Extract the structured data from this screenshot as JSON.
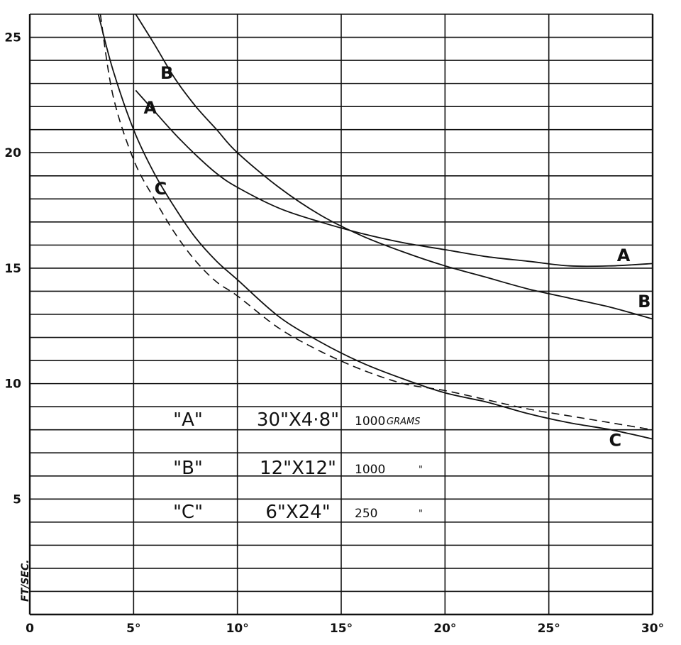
{
  "chart_data": {
    "type": "line",
    "title": "",
    "xlabel": "",
    "ylabel": "FT/SEC.",
    "xlim": [
      0,
      30
    ],
    "ylim": [
      0,
      26
    ],
    "grid": true,
    "x_ticks": [
      "0",
      "5°",
      "10°",
      "15°",
      "20°",
      "25°",
      "30°"
    ],
    "y_ticks": [
      "5",
      "10",
      "15",
      "20",
      "25"
    ],
    "series": [
      {
        "name": "A",
        "x": [
          5.1,
          6,
          7,
          8,
          9,
          10,
          12,
          14,
          16,
          18,
          20,
          22,
          24,
          26,
          28,
          30
        ],
        "y": [
          22.7,
          21.8,
          20.8,
          19.9,
          19.1,
          18.5,
          17.6,
          17.0,
          16.5,
          16.1,
          15.8,
          15.5,
          15.3,
          15.1,
          15.1,
          15.2
        ]
      },
      {
        "name": "B",
        "x": [
          5.1,
          6,
          7,
          8,
          9,
          10,
          12,
          14,
          16,
          18,
          20,
          22,
          24,
          26,
          28,
          30
        ],
        "y": [
          26.0,
          24.7,
          23.2,
          22.0,
          21.0,
          20.0,
          18.5,
          17.3,
          16.4,
          15.7,
          15.1,
          14.6,
          14.1,
          13.7,
          13.3,
          12.8
        ]
      },
      {
        "name": "C",
        "x": [
          3.3,
          4,
          5,
          6,
          7,
          8,
          9,
          10,
          12,
          14,
          16,
          18,
          20,
          22,
          24,
          26,
          28,
          30
        ],
        "y": [
          26.0,
          23.6,
          21.0,
          19.1,
          17.6,
          16.3,
          15.3,
          14.5,
          12.9,
          11.8,
          10.9,
          10.2,
          9.6,
          9.2,
          8.7,
          8.3,
          8.0,
          7.6
        ]
      },
      {
        "name": "",
        "style": "dashed",
        "x": [
          3.4,
          4,
          5,
          6,
          7,
          8,
          9,
          10,
          12,
          14,
          16,
          18,
          20,
          22,
          24,
          26,
          28,
          30
        ],
        "y": [
          26.0,
          22.5,
          19.7,
          18.0,
          16.5,
          15.3,
          14.4,
          13.8,
          12.4,
          11.4,
          10.6,
          10.0,
          9.7,
          9.3,
          8.9,
          8.6,
          8.3,
          8.0
        ]
      }
    ],
    "curve_labels": [
      {
        "text": "B",
        "x": 6.6,
        "y": 23.2
      },
      {
        "text": "A",
        "x": 5.8,
        "y": 21.7
      },
      {
        "text": "C",
        "x": 6.3,
        "y": 18.2
      },
      {
        "text": "A",
        "x": 28.6,
        "y": 15.3
      },
      {
        "text": "B",
        "x": 29.6,
        "y": 13.3
      },
      {
        "text": "C",
        "x": 28.2,
        "y": 7.3
      }
    ],
    "legend": [
      {
        "key": "\"A\"",
        "size": "30\"X4·8\"",
        "weight": "1000",
        "unit": "GRAMS"
      },
      {
        "key": "\"B\"",
        "size": "12\"X12\"",
        "weight": "1000",
        "unit": "\""
      },
      {
        "key": "\"C\"",
        "size": "6\"X24\"",
        "weight": "250",
        "unit": "\""
      }
    ]
  }
}
